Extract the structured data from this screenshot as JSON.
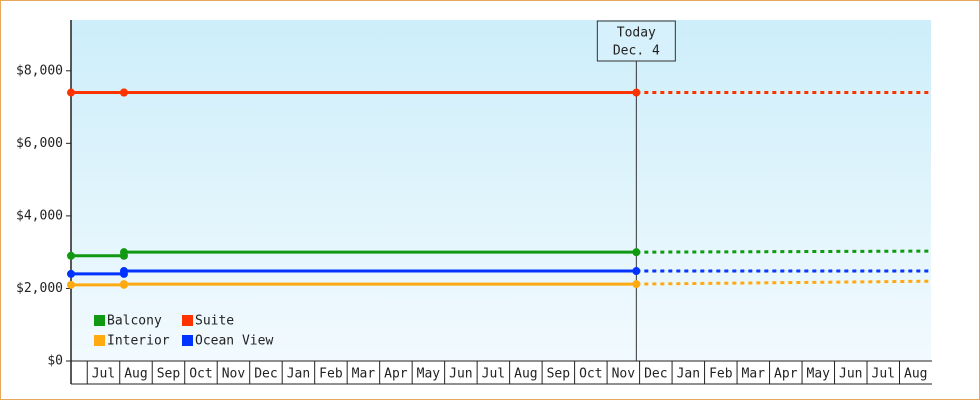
{
  "chart_data": {
    "type": "line",
    "categories": [
      "Jul",
      "Aug",
      "Sep",
      "Oct",
      "Nov",
      "Dec",
      "Jan",
      "Feb",
      "Mar",
      "Apr",
      "May",
      "Jun",
      "Jul",
      "Aug",
      "Sep",
      "Oct",
      "Nov",
      "Dec",
      "Jan",
      "Feb",
      "Mar",
      "Apr",
      "May",
      "Jun",
      "Jul",
      "Aug"
    ],
    "x": [
      -0.5,
      1.13,
      1.13,
      16.9
    ],
    "forecast_x": [
      16.9,
      26
    ],
    "xlim": [
      -0.5,
      26
    ],
    "ylim": [
      0,
      9400
    ],
    "yticks": [
      {
        "value": 0,
        "label": "$0"
      },
      {
        "value": 2000,
        "label": "$2,000"
      },
      {
        "value": 4000,
        "label": "$4,000"
      },
      {
        "value": 6000,
        "label": "$6,000"
      },
      {
        "value": 8000,
        "label": "$8,000"
      }
    ],
    "series": [
      {
        "name": "Balcony",
        "color": "#119911",
        "values": [
          2900,
          2900,
          3000,
          3000
        ],
        "forecast": [
          3000,
          3030
        ]
      },
      {
        "name": "Suite",
        "color": "#ff3300",
        "values": [
          7400,
          7400,
          7400,
          7400
        ],
        "forecast": [
          7400,
          7400
        ]
      },
      {
        "name": "Interior",
        "color": "#ffaa11",
        "values": [
          2100,
          2100,
          2120,
          2120
        ],
        "forecast": [
          2120,
          2200
        ]
      },
      {
        "name": "Ocean View",
        "color": "#0033ff",
        "values": [
          2400,
          2400,
          2480,
          2480
        ],
        "forecast": [
          2480,
          2480
        ]
      }
    ],
    "annotation": {
      "x": 16.9,
      "lines": [
        "Today",
        "Dec. 4"
      ]
    }
  }
}
